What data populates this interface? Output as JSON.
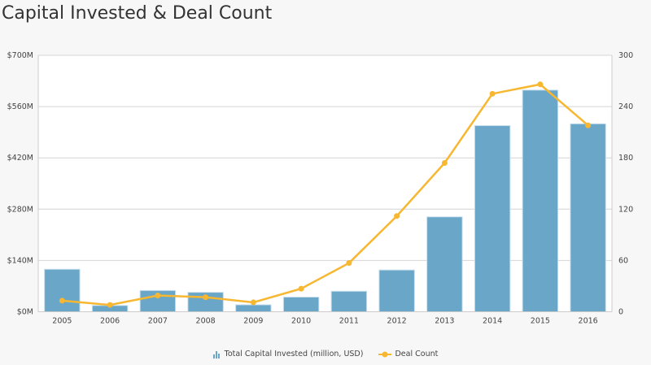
{
  "chart_data": {
    "type": "bar+line",
    "title": "Capital Invested & Deal Count",
    "categories": [
      "2005",
      "2006",
      "2007",
      "2008",
      "2009",
      "2010",
      "2011",
      "2012",
      "2013",
      "2014",
      "2015",
      "2016"
    ],
    "series": [
      {
        "name": "Total Capital Invested (million, USD)",
        "type": "bar",
        "axis": "left",
        "color": "#6aa6c8",
        "values": [
          116,
          17,
          58,
          53,
          19,
          40,
          56,
          114,
          259,
          508,
          605,
          513
        ]
      },
      {
        "name": "Deal Count",
        "type": "line",
        "axis": "right",
        "color": "#f7b731",
        "values": [
          13,
          8,
          19,
          17,
          11,
          27,
          57,
          112,
          174,
          255,
          266,
          218
        ]
      }
    ],
    "y_left": {
      "range": [
        0,
        700
      ],
      "ticks": [
        0,
        140,
        280,
        420,
        560,
        700
      ],
      "tick_labels": [
        "$0M",
        "$140M",
        "$280M",
        "$420M",
        "$560M",
        "$700M"
      ]
    },
    "y_right": {
      "range": [
        0,
        300
      ],
      "ticks": [
        0,
        60,
        120,
        180,
        240,
        300
      ],
      "tick_labels": [
        "0",
        "60",
        "120",
        "180",
        "240",
        "300"
      ]
    },
    "grid": true,
    "legend_position": "bottom-center"
  }
}
